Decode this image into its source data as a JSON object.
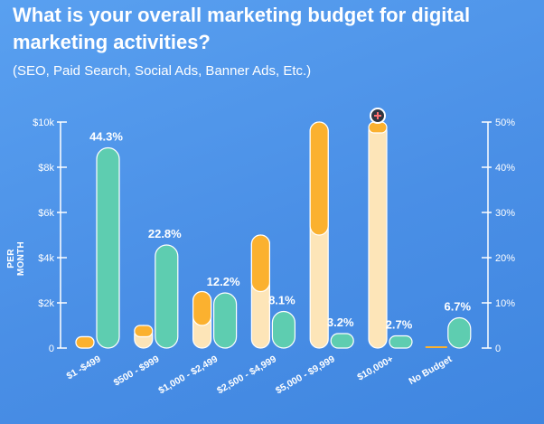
{
  "header": {
    "title": "What is your overall marketing budget for digital marketing activities?",
    "subtitle": "(SEO, Paid Search, Social Ads, Banner Ads, Etc.)"
  },
  "colors": {
    "background": "#4f93e8",
    "budget_orange": "#fbb12f",
    "budget_cream": "#fde5b8",
    "percent_green": "#5ecdb0",
    "axis": "#ffffff"
  },
  "icons": {
    "marker": "plus-circle-icon"
  },
  "chart_data": {
    "type": "bar",
    "title": "What is your overall marketing budget for digital marketing activities?",
    "subtitle": "(SEO, Paid Search, Social Ads, Banner Ads, Etc.)",
    "ylabel": "PER MONTH",
    "categories": [
      "$1 -$499",
      "$500 - $999",
      "$1,000 - $2,499",
      "$2,500 - $4,999",
      "$5,000 - $9,999",
      "$10,000+",
      "No Budget"
    ],
    "left_axis": {
      "ticks": [
        "0",
        "$2k",
        "$4k",
        "$6k",
        "$8k",
        "$10k"
      ],
      "values": [
        0,
        2000,
        4000,
        6000,
        8000,
        10000
      ],
      "ylim": [
        0,
        10000
      ]
    },
    "right_axis": {
      "ticks": [
        "0",
        "10%",
        "20%",
        "30%",
        "40%",
        "50%"
      ],
      "values": [
        0,
        10,
        20,
        30,
        40,
        50
      ],
      "ylim": [
        0,
        50
      ]
    },
    "series": [
      {
        "name": "",
        "axis": "left",
        "kind": "budget-range",
        "low": [
          1,
          500,
          1000,
          2500,
          5000,
          10000,
          0
        ],
        "high": [
          499,
          999,
          2499,
          4999,
          9999,
          10000,
          0
        ]
      },
      {
        "name": "",
        "axis": "right",
        "kind": "percent",
        "values": [
          44.3,
          22.8,
          12.2,
          8.1,
          3.2,
          2.7,
          6.7
        ],
        "labels": [
          "44.3%",
          "22.8%",
          "12.2%",
          "8.1%",
          "3.2%",
          "2.7%",
          "6.7%"
        ]
      }
    ],
    "grid": false,
    "legend": "none"
  }
}
